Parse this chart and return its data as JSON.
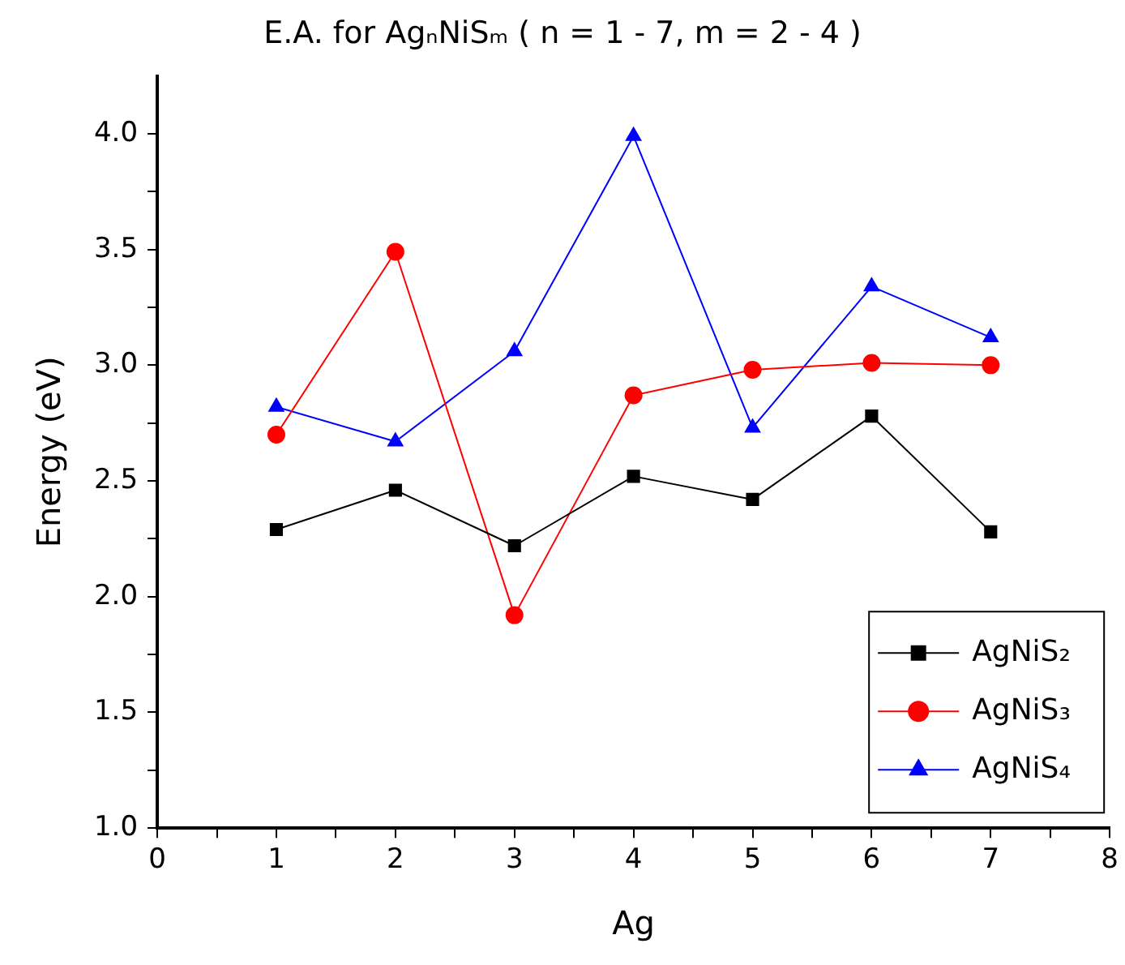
{
  "chart_data": {
    "type": "line",
    "title": "E.A. for AgₙNiSₘ ( n = 1 - 7, m = 2 - 4 )",
    "xlabel": "Ag",
    "ylabel": "Energy (eV)",
    "x": [
      1,
      2,
      3,
      4,
      5,
      6,
      7
    ],
    "series": [
      {
        "name": "AgNiS₂",
        "color": "#000000",
        "marker": "square",
        "values": [
          2.29,
          2.46,
          2.22,
          2.52,
          2.42,
          2.78,
          2.28
        ]
      },
      {
        "name": "AgNiS₃",
        "color": "#ff0000",
        "marker": "circle",
        "values": [
          2.7,
          3.49,
          1.92,
          2.87,
          2.98,
          3.01,
          3.0
        ]
      },
      {
        "name": "AgNiS₄",
        "color": "#0000ff",
        "marker": "triangle",
        "values": [
          2.82,
          2.67,
          3.06,
          3.99,
          2.73,
          3.34,
          3.12
        ]
      }
    ],
    "xlim": [
      0,
      8
    ],
    "xticks": [
      0,
      {
        "value": 0.5,
        "label": null
      },
      1,
      {
        "value": 1.5,
        "label": null
      },
      2,
      {
        "value": 2.5,
        "label": null
      },
      3,
      {
        "value": 3.5,
        "label": null
      },
      4,
      {
        "value": 4.5,
        "label": null
      },
      5,
      {
        "value": 5.5,
        "label": null
      },
      6,
      {
        "value": 6.5,
        "label": null
      },
      7,
      {
        "value": 7.5,
        "label": null
      },
      8
    ],
    "ylim": [
      1,
      4.25
    ],
    "yticks": [
      {
        "value": 1,
        "label": "1.0"
      },
      {
        "value": 1.25,
        "label": null
      },
      {
        "value": 1.5,
        "label": "1.5"
      },
      {
        "value": 1.75,
        "label": null
      },
      {
        "value": 2,
        "label": "2.0"
      },
      {
        "value": 2.25,
        "label": null
      },
      {
        "value": 2.5,
        "label": "2.5"
      },
      {
        "value": 2.75,
        "label": null
      },
      {
        "value": 3,
        "label": "3.0"
      },
      {
        "value": 3.25,
        "label": null
      },
      {
        "value": 3.5,
        "label": "3.5"
      },
      {
        "value": 3.75,
        "label": null
      },
      {
        "value": 4,
        "label": "4.0"
      }
    ],
    "grid": false,
    "legend": "bottom right",
    "line_style": "solid"
  }
}
